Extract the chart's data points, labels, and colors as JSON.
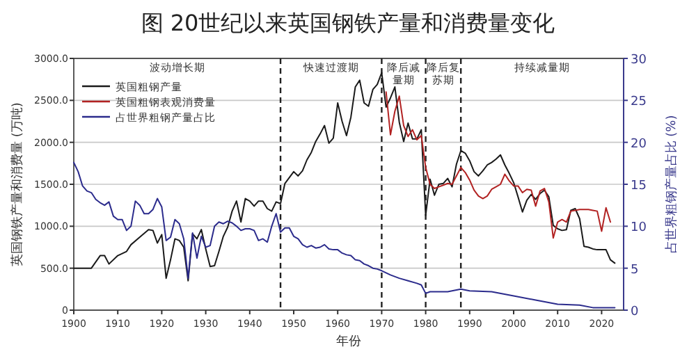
{
  "chart_data": {
    "type": "line",
    "title": "图 20世纪以来英国钢铁产量和消费量变化",
    "xlabel": "年份",
    "ylabel": "英国钢铁产量和消费量 (万吨)",
    "y2label": "占世界粗钢产量占比 (%)",
    "xlim": [
      1900,
      2025
    ],
    "xticks": [
      1900,
      1910,
      1920,
      1930,
      1940,
      1950,
      1960,
      1970,
      1980,
      1990,
      2000,
      2010,
      2020
    ],
    "ylim": [
      0,
      3000
    ],
    "yticks": [
      {
        "value": 0,
        "label": "0"
      },
      {
        "value": 500,
        "label": "500.0"
      },
      {
        "value": 1000,
        "label": "1000.0"
      },
      {
        "value": 1500,
        "label": "1500.0"
      },
      {
        "value": 2000,
        "label": "2000.0"
      },
      {
        "value": 2500,
        "label": "2500.0"
      },
      {
        "value": 3000,
        "label": "3000.0"
      }
    ],
    "y2lim": [
      0,
      30
    ],
    "y2ticks": [
      0,
      5,
      10,
      15,
      20,
      25,
      30
    ],
    "grid": "y",
    "legend": "top left",
    "marker": "none",
    "line_style": "solid",
    "ref_lines": [
      {
        "axis": "x",
        "value": 1947,
        "line_style": "dashed",
        "color": "#222222"
      },
      {
        "axis": "x",
        "value": 1970,
        "line_style": "dashed",
        "color": "#222222"
      },
      {
        "axis": "x",
        "value": 1980,
        "line_style": "dashed",
        "color": "#222222"
      },
      {
        "axis": "x",
        "value": 1988,
        "line_style": "dashed",
        "color": "#222222"
      }
    ],
    "annotations": [
      "波动增长期",
      "快速过渡期",
      "降后减量期",
      "降后复苏期",
      "持续减量期"
    ],
    "series": [
      {
        "name": "英国粗钢产量",
        "color": "#1a1a1a",
        "x": [
          1900,
          1904,
          1906,
          1907,
          1908,
          1910,
          1912,
          1913,
          1915,
          1917,
          1918,
          1919,
          1920,
          1921,
          1922,
          1923,
          1924,
          1925,
          1926,
          1927,
          1928,
          1929,
          1930,
          1931,
          1932,
          1933,
          1934,
          1935,
          1936,
          1937,
          1938,
          1939,
          1940,
          1941,
          1942,
          1943,
          1944,
          1945,
          1946,
          1947,
          1948,
          1949,
          1950,
          1951,
          1952,
          1953,
          1954,
          1955,
          1956,
          1957,
          1958,
          1959,
          1960,
          1961,
          1962,
          1963,
          1964,
          1965,
          1966,
          1967,
          1968,
          1969,
          1970,
          1971,
          1972,
          1973,
          1974,
          1975,
          1976,
          1977,
          1978,
          1979,
          1980,
          1981,
          1982,
          1983,
          1984,
          1985,
          1986,
          1987,
          1988,
          1989,
          1990,
          1991,
          1992,
          1993,
          1994,
          1995,
          1996,
          1997,
          1998,
          1999,
          2000,
          2001,
          2002,
          2003,
          2004,
          2005,
          2006,
          2007,
          2008,
          2009,
          2010,
          2011,
          2012,
          2013,
          2014,
          2015,
          2016,
          2017,
          2018,
          2019,
          2020,
          2021,
          2022,
          2023
        ],
        "values": [
          500,
          500,
          650,
          650,
          550,
          650,
          700,
          780,
          870,
          960,
          950,
          800,
          900,
          380,
          600,
          850,
          830,
          750,
          350,
          910,
          850,
          960,
          730,
          520,
          530,
          700,
          880,
          990,
          1180,
          1300,
          1050,
          1330,
          1300,
          1240,
          1300,
          1300,
          1210,
          1180,
          1290,
          1270,
          1510,
          1580,
          1650,
          1600,
          1660,
          1790,
          1880,
          2010,
          2100,
          2200,
          1990,
          2050,
          2470,
          2250,
          2080,
          2300,
          2660,
          2740,
          2470,
          2430,
          2630,
          2690,
          2830,
          2420,
          2530,
          2660,
          2240,
          2010,
          2230,
          2040,
          2040,
          2150,
          1130,
          1560,
          1370,
          1500,
          1510,
          1570,
          1470,
          1740,
          1900,
          1870,
          1780,
          1650,
          1600,
          1660,
          1730,
          1760,
          1800,
          1850,
          1730,
          1630,
          1520,
          1350,
          1170,
          1310,
          1380,
          1320,
          1390,
          1430,
          1350,
          1010,
          970,
          950,
          960,
          1190,
          1210,
          1090,
          760,
          750,
          730,
          720,
          720,
          720,
          600,
          560
        ]
      },
      {
        "name": "英国粗钢表观消费量",
        "color": "#b22222",
        "x": [
          1971,
          1972,
          1973,
          1974,
          1975,
          1976,
          1977,
          1978,
          1979,
          1980,
          1981,
          1982,
          1983,
          1984,
          1985,
          1986,
          1987,
          1988,
          1989,
          1990,
          1991,
          1992,
          1993,
          1994,
          1995,
          1996,
          1997,
          1998,
          1999,
          2000,
          2001,
          2002,
          2003,
          2004,
          2005,
          2006,
          2007,
          2008,
          2009,
          2010,
          2011,
          2012,
          2013,
          2014,
          2015,
          2016,
          2017,
          2018,
          2019,
          2020,
          2021,
          2022
        ],
        "values": [
          2600,
          2090,
          2370,
          2550,
          2200,
          2070,
          2150,
          2030,
          2080,
          1700,
          1500,
          1450,
          1470,
          1490,
          1510,
          1500,
          1600,
          1700,
          1640,
          1550,
          1430,
          1360,
          1330,
          1360,
          1440,
          1470,
          1500,
          1620,
          1540,
          1480,
          1480,
          1400,
          1440,
          1430,
          1240,
          1420,
          1450,
          1290,
          860,
          1050,
          1080,
          1050,
          1180,
          1190,
          1200,
          1200,
          1200,
          1190,
          1180,
          940,
          1220,
          1050
        ]
      },
      {
        "name": "占世界粗钢产量占比",
        "color": "#2b2b8c",
        "axis": "y2",
        "x": [
          1900,
          1901,
          1902,
          1903,
          1904,
          1905,
          1906,
          1907,
          1908,
          1909,
          1910,
          1911,
          1912,
          1913,
          1914,
          1915,
          1916,
          1917,
          1918,
          1919,
          1920,
          1921,
          1922,
          1923,
          1924,
          1925,
          1926,
          1927,
          1928,
          1929,
          1930,
          1931,
          1932,
          1933,
          1934,
          1935,
          1936,
          1937,
          1938,
          1939,
          1940,
          1941,
          1942,
          1943,
          1944,
          1945,
          1946,
          1947,
          1948,
          1949,
          1950,
          1951,
          1952,
          1953,
          1954,
          1955,
          1956,
          1957,
          1958,
          1959,
          1960,
          1961,
          1962,
          1963,
          1964,
          1965,
          1966,
          1967,
          1968,
          1969,
          1970,
          1972,
          1974,
          1976,
          1978,
          1979,
          1980,
          1981,
          1985,
          1988,
          1990,
          1995,
          2000,
          2005,
          2010,
          2015,
          2018,
          2023
        ],
        "values": [
          17.6,
          16.5,
          14.8,
          14.2,
          14.0,
          13.2,
          12.8,
          12.5,
          12.9,
          11.2,
          10.8,
          10.8,
          9.5,
          10.0,
          13.0,
          12.5,
          11.5,
          11.5,
          12.0,
          13.3,
          12.3,
          8.3,
          8.7,
          10.8,
          10.3,
          8.5,
          3.8,
          9.2,
          6.2,
          8.8,
          7.5,
          7.7,
          10.0,
          10.5,
          10.3,
          10.6,
          10.4,
          10.0,
          9.5,
          9.7,
          9.7,
          9.5,
          8.3,
          8.5,
          8.1,
          10.0,
          11.5,
          9.3,
          9.8,
          9.8,
          8.8,
          8.5,
          7.8,
          7.5,
          7.7,
          7.4,
          7.5,
          7.8,
          7.3,
          7.2,
          7.2,
          6.8,
          6.6,
          6.5,
          6.0,
          5.9,
          5.5,
          5.3,
          5.0,
          4.9,
          4.7,
          4.2,
          3.8,
          3.5,
          3.2,
          3.0,
          2.0,
          2.2,
          2.2,
          2.5,
          2.3,
          2.2,
          1.7,
          1.2,
          0.7,
          0.6,
          0.3,
          0.3
        ]
      }
    ]
  }
}
